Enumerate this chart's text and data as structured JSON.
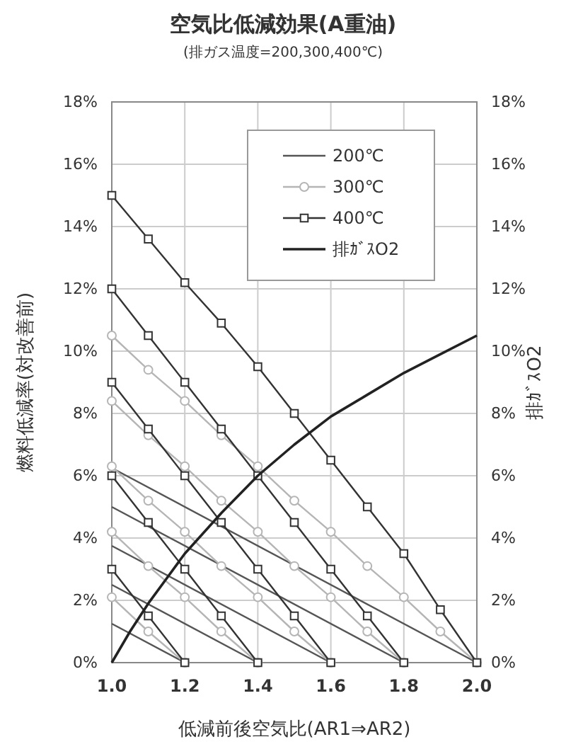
{
  "chart_data": {
    "type": "line",
    "title": "空気比低減効果(A重油)",
    "subtitle": "(排ガス温度=200,300,400℃)",
    "xlabel": "低減前後空気比(AR1⇒AR2)",
    "ylabel": "燃料低減率(対改善前)",
    "y2label": "排ｶﾞｽO2",
    "xlim": [
      1.0,
      2.0
    ],
    "xticks": [
      {
        "value": 1.0,
        "label": "1.0"
      },
      {
        "value": 1.2,
        "label": "1.2"
      },
      {
        "value": 1.4,
        "label": "1.4"
      },
      {
        "value": 1.6,
        "label": "1.6"
      },
      {
        "value": 1.8,
        "label": "1.8"
      },
      {
        "value": 2.0,
        "label": "2.0"
      }
    ],
    "ylim": [
      0,
      18
    ],
    "yticks": [
      {
        "value": 0,
        "label": "0%"
      },
      {
        "value": 2,
        "label": "2%"
      },
      {
        "value": 4,
        "label": "4%"
      },
      {
        "value": 6,
        "label": "6%"
      },
      {
        "value": 8,
        "label": "8%"
      },
      {
        "value": 10,
        "label": "10%"
      },
      {
        "value": 12,
        "label": "12%"
      },
      {
        "value": 14,
        "label": "14%"
      },
      {
        "value": 16,
        "label": "16%"
      },
      {
        "value": 18,
        "label": "18%"
      }
    ],
    "y2lim": [
      0,
      18
    ],
    "y2ticks": [
      {
        "value": 0,
        "label": "0%"
      },
      {
        "value": 2,
        "label": "2%"
      },
      {
        "value": 4,
        "label": "4%"
      },
      {
        "value": 6,
        "label": "6%"
      },
      {
        "value": 8,
        "label": "8%"
      },
      {
        "value": 10,
        "label": "10%"
      },
      {
        "value": 12,
        "label": "12%"
      },
      {
        "value": 14,
        "label": "14%"
      },
      {
        "value": 16,
        "label": "16%"
      },
      {
        "value": 18,
        "label": "18%"
      }
    ],
    "grid": true,
    "legend": "top right",
    "series": [
      {
        "name": "200℃",
        "color": "#555555",
        "marker": "none",
        "x": [
          1.0,
          1.2
        ],
        "values": [
          1.25,
          0
        ]
      },
      {
        "color": "#555555",
        "marker": "none",
        "x": [
          1.0,
          1.4
        ],
        "values": [
          2.5,
          0
        ]
      },
      {
        "color": "#555555",
        "marker": "none",
        "x": [
          1.0,
          1.6
        ],
        "values": [
          3.75,
          0
        ]
      },
      {
        "color": "#555555",
        "marker": "none",
        "x": [
          1.0,
          1.8
        ],
        "values": [
          5.0,
          0
        ]
      },
      {
        "color": "#555555",
        "marker": "none",
        "x": [
          1.0,
          2.0
        ],
        "values": [
          6.25,
          0
        ]
      },
      {
        "name": "300℃",
        "color": "#b5b5b5",
        "marker": "circle",
        "x": [
          1.0,
          1.1,
          1.2
        ],
        "values": [
          2.1,
          1.0,
          0
        ]
      },
      {
        "color": "#b5b5b5",
        "marker": "circle",
        "x": [
          1.0,
          1.1,
          1.2,
          1.3,
          1.4
        ],
        "values": [
          4.2,
          3.1,
          2.1,
          1.0,
          0
        ]
      },
      {
        "color": "#b5b5b5",
        "marker": "circle",
        "x": [
          1.0,
          1.1,
          1.2,
          1.3,
          1.4,
          1.5,
          1.6
        ],
        "values": [
          6.3,
          5.2,
          4.2,
          3.1,
          2.1,
          1.0,
          0
        ]
      },
      {
        "color": "#b5b5b5",
        "marker": "circle",
        "x": [
          1.0,
          1.1,
          1.2,
          1.3,
          1.4,
          1.5,
          1.6,
          1.7,
          1.8
        ],
        "values": [
          8.4,
          7.3,
          6.3,
          5.2,
          4.2,
          3.1,
          2.1,
          1.0,
          0
        ]
      },
      {
        "color": "#b5b5b5",
        "marker": "circle",
        "x": [
          1.0,
          1.1,
          1.2,
          1.3,
          1.4,
          1.5,
          1.6,
          1.7,
          1.8,
          1.9,
          2.0
        ],
        "values": [
          10.5,
          9.4,
          8.4,
          7.3,
          6.3,
          5.2,
          4.2,
          3.1,
          2.1,
          1.0,
          0
        ]
      },
      {
        "name": "400℃",
        "color": "#333333",
        "marker": "square",
        "x": [
          1.0,
          1.1,
          1.2
        ],
        "values": [
          3,
          1.5,
          0
        ]
      },
      {
        "color": "#333333",
        "marker": "square",
        "x": [
          1.0,
          1.1,
          1.2,
          1.3,
          1.4
        ],
        "values": [
          6,
          4.5,
          3,
          1.5,
          0
        ]
      },
      {
        "color": "#333333",
        "marker": "square",
        "x": [
          1.0,
          1.1,
          1.2,
          1.3,
          1.4,
          1.5,
          1.6
        ],
        "values": [
          9,
          7.5,
          6,
          4.5,
          3,
          1.5,
          0
        ]
      },
      {
        "color": "#333333",
        "marker": "square",
        "x": [
          1.0,
          1.1,
          1.2,
          1.3,
          1.4,
          1.5,
          1.6,
          1.7,
          1.8
        ],
        "values": [
          12,
          10.5,
          9,
          7.5,
          6,
          4.5,
          3,
          1.5,
          0
        ]
      },
      {
        "color": "#333333",
        "marker": "square",
        "x": [
          1.0,
          1.1,
          1.2,
          1.3,
          1.4,
          1.5,
          1.6,
          1.7,
          1.8,
          1.9,
          2.0
        ],
        "values": [
          15,
          13.6,
          12.2,
          10.9,
          9.5,
          8.0,
          6.5,
          5.0,
          3.5,
          1.7,
          0
        ]
      },
      {
        "name": "排ｶﾞｽO2",
        "color": "#222222",
        "marker": "none",
        "axis": "y2",
        "x": [
          1.0,
          1.05,
          1.1,
          1.15,
          1.2,
          1.3,
          1.4,
          1.5,
          1.6,
          1.7,
          1.8,
          1.9,
          2.0
        ],
        "values": [
          0,
          1.0,
          1.9,
          2.7,
          3.5,
          4.8,
          6.0,
          7.0,
          7.9,
          8.6,
          9.3,
          9.9,
          10.5
        ]
      }
    ]
  }
}
